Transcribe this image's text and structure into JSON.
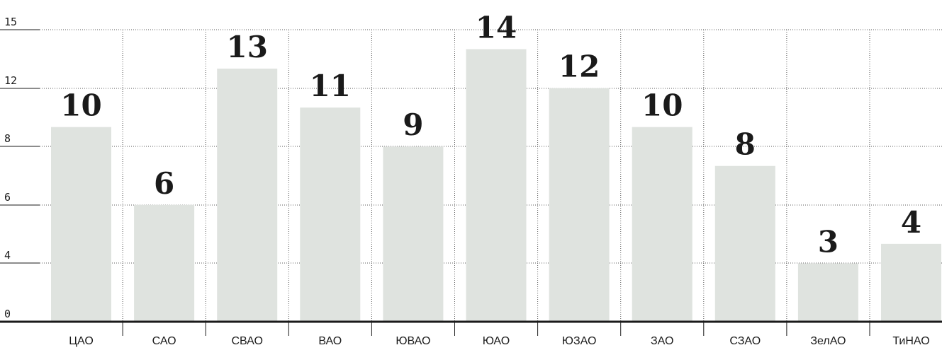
{
  "chart_data": {
    "type": "bar",
    "categories": [
      "ЦАО",
      "САО",
      "СВАО",
      "ВАО",
      "ЮВАО",
      "ЮАО",
      "ЮЗАО",
      "ЗАО",
      "СЗАО",
      "ЗелАО",
      "ТиНАО"
    ],
    "values": [
      10,
      6,
      13,
      11,
      9,
      14,
      12,
      10,
      8,
      3,
      4
    ],
    "y_tick_labels": [
      "0",
      "4",
      "6",
      "8",
      "12",
      "15"
    ],
    "title": "",
    "xlabel": "",
    "ylabel": "",
    "ylim": [
      0,
      15
    ],
    "grid": true,
    "bar_color": "#dfe3df",
    "text_color": "#1a1a1a"
  }
}
